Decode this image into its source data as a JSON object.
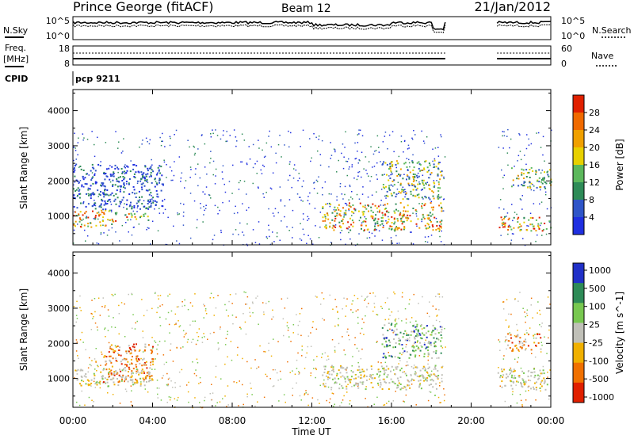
{
  "header": {
    "station": "Prince George (fitACF)",
    "beam": "Beam 12",
    "date": "21/Jan/2012"
  },
  "noise_panel": {
    "left_label": "N.Sky",
    "right_label": "N.Search",
    "left_ticks": [
      "10^5",
      "10^0"
    ],
    "right_ticks": [
      "10^5",
      "10^0"
    ]
  },
  "freq_panel": {
    "left_label": "Freq.",
    "left_unit": "[MHz]",
    "right_label": "Nave",
    "left_ticks": [
      "18",
      "8"
    ],
    "right_ticks": [
      "60",
      "0"
    ]
  },
  "cpid": {
    "label": "CPID",
    "value": "pcp 9211"
  },
  "colors": {
    "power": [
      "#1f2fe0",
      "#2f55c8",
      "#2e8b57",
      "#5cb85c",
      "#e8d000",
      "#f0a000",
      "#f06a00",
      "#e02000"
    ],
    "velocity": [
      "#2030c8",
      "#2e8b57",
      "#78c850",
      "#c0c0b8",
      "#f0b000",
      "#f07000",
      "#e02000"
    ]
  },
  "chart_data": [
    {
      "type": "heatmap",
      "name": "power",
      "ylabel": "Slant Range [km]",
      "y_ticks": [
        1000,
        2000,
        3000,
        4000
      ],
      "ylim": [
        180,
        4600
      ],
      "colorbar": {
        "label": "Power [dB]",
        "ticks": [
          "28",
          "24",
          "20",
          "16",
          "12",
          "8",
          "4"
        ],
        "range": [
          0,
          32
        ]
      },
      "echo_regions": [
        {
          "t": [
            0.0,
            2.2
          ],
          "r": [
            700,
            1200
          ],
          "level": "high"
        },
        {
          "t": [
            2.5,
            4.0
          ],
          "r": [
            900,
            1100
          ],
          "level": "high"
        },
        {
          "t": [
            0.0,
            4.5
          ],
          "r": [
            1200,
            2500
          ],
          "level": "low"
        },
        {
          "t": [
            12.5,
            18.5
          ],
          "r": [
            600,
            1400
          ],
          "level": "high"
        },
        {
          "t": [
            15.5,
            18.5
          ],
          "r": [
            1500,
            2600
          ],
          "level": "mid"
        },
        {
          "t": [
            21.3,
            24.0
          ],
          "r": [
            600,
            1000
          ],
          "level": "high"
        },
        {
          "t": [
            22.0,
            24.0
          ],
          "r": [
            1800,
            2400
          ],
          "level": "mid"
        }
      ],
      "gaps_ut": [
        [
          18.7,
          21.3
        ]
      ]
    },
    {
      "type": "heatmap",
      "name": "velocity",
      "ylabel": "Slant Range [km]",
      "y_ticks": [
        1000,
        2000,
        3000,
        4000
      ],
      "ylim": [
        180,
        4600
      ],
      "colorbar": {
        "label": "Velocity [m s^-1]",
        "ticks": [
          "1000",
          "500",
          "100",
          "25",
          "-25",
          "-100",
          "-500",
          "-1000"
        ]
      },
      "echo_regions": [
        {
          "t": [
            0.0,
            4.0
          ],
          "r": [
            800,
            1300
          ],
          "level": "ground"
        },
        {
          "t": [
            1.5,
            4.0
          ],
          "r": [
            900,
            2000
          ],
          "level": "away"
        },
        {
          "t": [
            12.5,
            18.5
          ],
          "r": [
            700,
            1400
          ],
          "level": "ground"
        },
        {
          "t": [
            15.5,
            18.5
          ],
          "r": [
            1600,
            2600
          ],
          "level": "toward"
        },
        {
          "t": [
            21.3,
            24.0
          ],
          "r": [
            700,
            1300
          ],
          "level": "ground"
        },
        {
          "t": [
            21.8,
            23.5
          ],
          "r": [
            1800,
            2300
          ],
          "level": "away"
        }
      ],
      "gaps_ut": [
        [
          18.7,
          21.3
        ]
      ]
    }
  ],
  "x_axis": {
    "xlabel": "Time UT",
    "ticks": [
      "00:00",
      "04:00",
      "08:00",
      "12:00",
      "16:00",
      "20:00",
      "00:00"
    ],
    "range_hours": [
      0,
      24
    ]
  }
}
